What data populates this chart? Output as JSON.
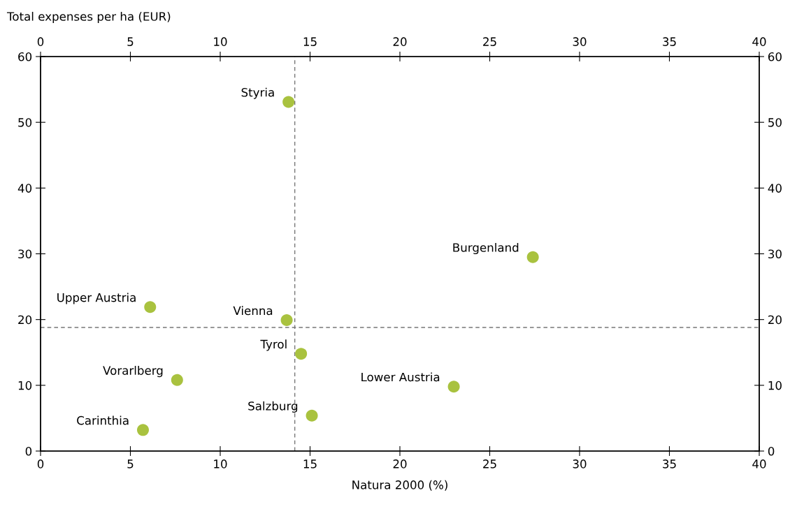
{
  "chart_data": {
    "type": "scatter",
    "ylabel": "Total expenses per ha (EUR)",
    "xlabel": "Natura 2000 (%)",
    "x": [
      13.8,
      27.4,
      6.1,
      13.7,
      14.5,
      7.6,
      23.0,
      15.1,
      5.7
    ],
    "series": [
      {
        "color": "#a9c23f",
        "values": [
          53.1,
          29.5,
          21.9,
          19.9,
          14.8,
          10.8,
          9.8,
          5.4,
          3.2
        ]
      }
    ],
    "marker": "circle",
    "grid": false,
    "xlim": [
      0,
      40
    ],
    "xticks": [
      0,
      5,
      10,
      15,
      20,
      25,
      30,
      35,
      40
    ],
    "x2lim": [
      0,
      40
    ],
    "x2ticks": [
      0,
      5,
      10,
      15,
      20,
      25,
      30,
      35,
      40
    ],
    "ylim": [
      0,
      60
    ],
    "yticks": [
      0,
      10,
      20,
      30,
      40,
      50,
      60
    ],
    "y2lim": [
      0,
      60
    ],
    "y2ticks": [
      0,
      10,
      20,
      30,
      40,
      50,
      60
    ],
    "ref_lines": [
      {
        "axis": "x",
        "value": 14.15,
        "label": null,
        "color": "#777777",
        "line_style": "dashed"
      },
      {
        "axis": "y",
        "value": 18.8,
        "label": null,
        "color": "#777777",
        "line_style": "dashed"
      }
    ],
    "annotations": [
      {
        "text": "Styria",
        "x": 13.8,
        "y": 53.1
      },
      {
        "text": "Burgenland",
        "x": 27.4,
        "y": 29.5
      },
      {
        "text": "Upper Austria",
        "x": 6.1,
        "y": 21.9
      },
      {
        "text": "Vienna",
        "x": 13.7,
        "y": 19.9
      },
      {
        "text": "Tyrol",
        "x": 14.5,
        "y": 14.8
      },
      {
        "text": "Vorarlberg",
        "x": 7.6,
        "y": 10.8
      },
      {
        "text": "Lower Austria",
        "x": 23.0,
        "y": 9.8
      },
      {
        "text": "Salzburg",
        "x": 15.1,
        "y": 5.4
      },
      {
        "text": "Carinthia",
        "x": 5.7,
        "y": 3.2
      }
    ]
  }
}
